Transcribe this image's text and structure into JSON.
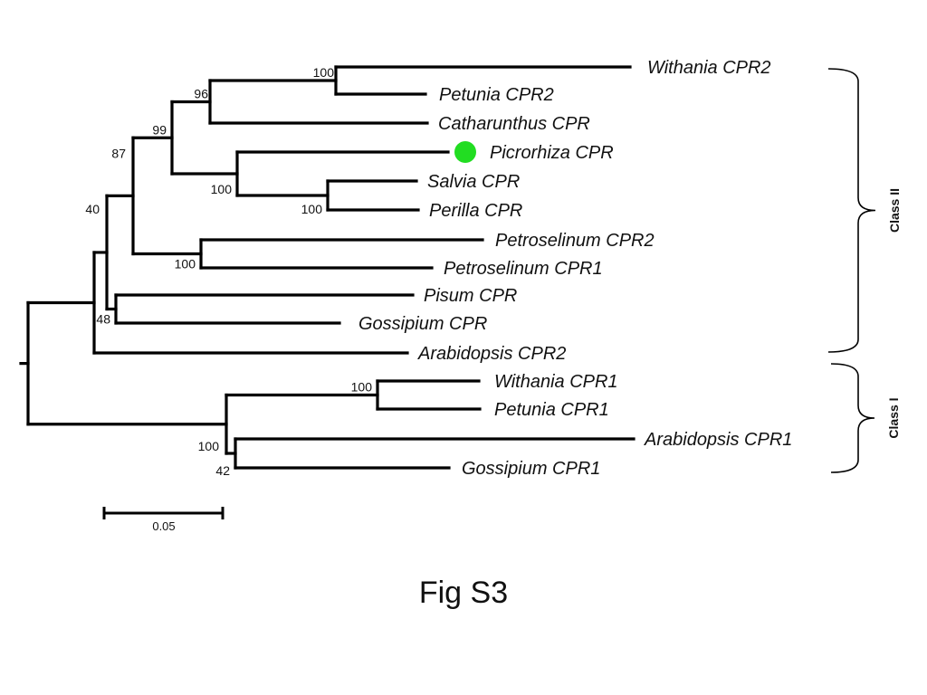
{
  "caption": "Fig S3",
  "highlight_color": "#22dd22",
  "tree": {
    "taxa": [
      {
        "id": "withania_cpr2",
        "label": "Withania CPR2"
      },
      {
        "id": "petunia_cpr2",
        "label": "Petunia CPR2"
      },
      {
        "id": "catharunthus_cpr",
        "label": "Catharunthus CPR"
      },
      {
        "id": "picrorhiza_cpr",
        "label": "Picrorhiza CPR",
        "highlight": true
      },
      {
        "id": "salvia_cpr",
        "label": "Salvia CPR"
      },
      {
        "id": "perilla_cpr",
        "label": "Perilla CPR"
      },
      {
        "id": "petroselinum_cpr2",
        "label": "Petroselinum CPR2"
      },
      {
        "id": "petroselinum_cpr1",
        "label": "Petroselinum CPR1"
      },
      {
        "id": "pisum_cpr",
        "label": "Pisum CPR"
      },
      {
        "id": "gossipium_cpr",
        "label": "Gossipium CPR"
      },
      {
        "id": "arabidopsis_cpr2",
        "label": "Arabidopsis CPR2"
      },
      {
        "id": "withania_cpr1",
        "label": "Withania CPR1"
      },
      {
        "id": "petunia_cpr1",
        "label": "Petunia CPR1"
      },
      {
        "id": "arabidopsis_cpr1",
        "label": "Arabidopsis CPR1"
      },
      {
        "id": "gossipium_cpr1",
        "label": "Gossipium CPR1"
      }
    ],
    "bootstrap": [
      {
        "clade": "withania_cpr2+petunia_cpr2",
        "value": "100"
      },
      {
        "clade": "withania_cpr2+petunia_cpr2+catharunthus_cpr",
        "value": "96"
      },
      {
        "clade": "solanaceae+lamiales",
        "value": "99"
      },
      {
        "clade": "picrorhiza_cpr+salvia_cpr+perilla_cpr",
        "value": "100"
      },
      {
        "clade": "salvia_cpr+perilla_cpr",
        "value": "100"
      },
      {
        "clade": "petroselinum_cpr2+petroselinum_cpr1",
        "value": "100"
      },
      {
        "clade": "asterids",
        "value": "87"
      },
      {
        "clade": "class_ii_minus_arabidopsis_cpr2",
        "value": "40"
      },
      {
        "clade": "pisum_cpr+gossipium_cpr",
        "value": "48"
      },
      {
        "clade": "withania_cpr1+petunia_cpr1",
        "value": "100"
      },
      {
        "clade": "class_i",
        "value": "100"
      },
      {
        "clade": "arabidopsis_cpr1+gossipium_cpr1",
        "value": "42"
      }
    ],
    "scale_bar": {
      "label": "0.05",
      "value": 0.05
    },
    "classes": [
      {
        "label": "Class II",
        "members": [
          "withania_cpr2",
          "arabidopsis_cpr2"
        ]
      },
      {
        "label": "Class I",
        "members": [
          "withania_cpr1",
          "gossipium_cpr1"
        ]
      }
    ]
  }
}
